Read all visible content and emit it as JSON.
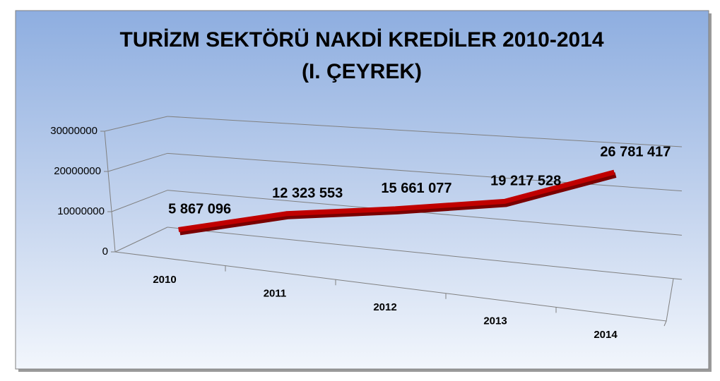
{
  "chart_data": {
    "type": "line",
    "title": "TURİZM SEKTÖRÜ NAKDİ KREDİLER  2010-2014",
    "subtitle": "(I. ÇEYREK)",
    "categories": [
      "2010",
      "2011",
      "2012",
      "2013",
      "2014"
    ],
    "values": [
      5867096,
      12323553,
      15661077,
      19217528,
      26781417
    ],
    "value_labels": [
      "5 867 096",
      "12 323 553",
      "15 661 077",
      "19 217 528",
      "26 781 417"
    ],
    "color": "#c00000",
    "ylim": [
      0,
      30000000
    ],
    "yticks": [
      0,
      10000000,
      20000000,
      30000000
    ],
    "grid": true
  }
}
